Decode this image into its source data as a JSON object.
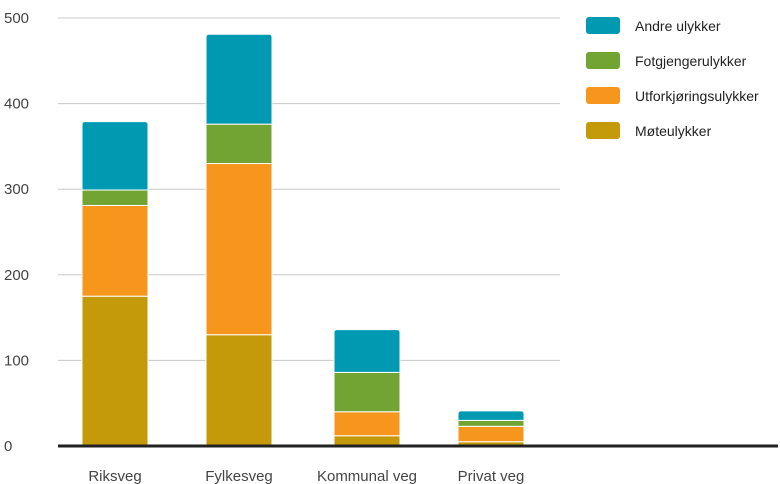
{
  "chart_data": {
    "type": "bar",
    "stacked": true,
    "categories": [
      "Riksveg",
      "Fylkesveg",
      "Kommunal veg",
      "Privat veg"
    ],
    "series": [
      {
        "name": "Møteulykker",
        "color": "#c49a0a",
        "values": [
          175,
          130,
          12,
          5
        ]
      },
      {
        "name": "Utforkjøringsulykker",
        "color": "#f7961d",
        "values": [
          106,
          200,
          28,
          18
        ]
      },
      {
        "name": "Fotgjengerulykker",
        "color": "#72a433",
        "values": [
          18,
          46,
          46,
          7
        ]
      },
      {
        "name": "Andre ulykker",
        "color": "#0099b2",
        "values": [
          80,
          105,
          50,
          11
        ]
      }
    ],
    "legend_order": [
      "Andre ulykker",
      "Fotgjengerulykker",
      "Utforkjøringsulykker",
      "Møteulykker"
    ],
    "ylim": [
      0,
      500
    ],
    "yticks": [
      0,
      100,
      200,
      300,
      400,
      500
    ],
    "grid": true,
    "legend_position": "top-right"
  }
}
